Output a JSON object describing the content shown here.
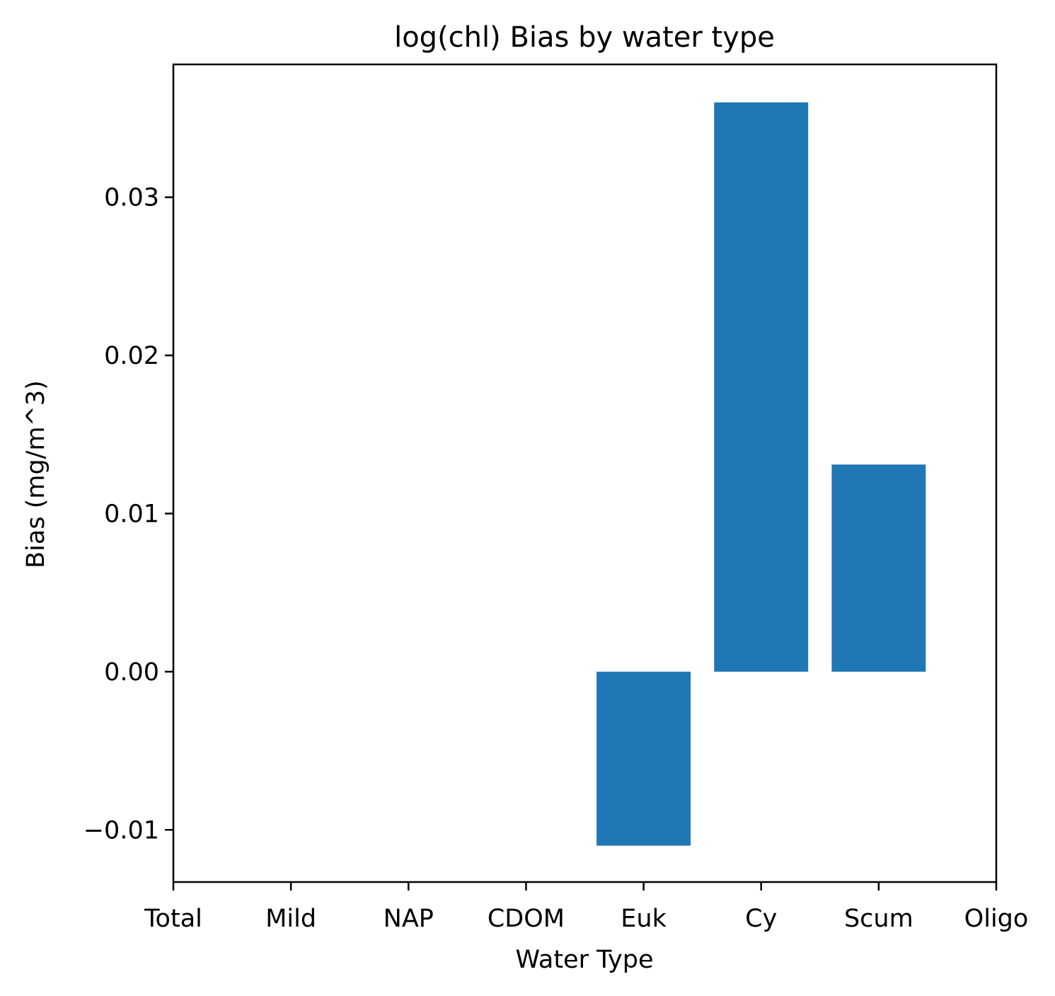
{
  "chart_data": {
    "type": "bar",
    "title": "log(chl) Bias by water type",
    "xlabel": "Water Type",
    "ylabel": "Bias (mg/m^3)",
    "categories": [
      "Total",
      "Mild",
      "NAP",
      "CDOM",
      "Euk",
      "Cy",
      "Scum",
      "Oligo"
    ],
    "values": [
      null,
      null,
      null,
      null,
      -0.011,
      0.036,
      0.0131,
      null
    ],
    "ylim": [
      -0.0133,
      0.0384
    ],
    "yticks": [
      -0.01,
      0.0,
      0.01,
      0.02,
      0.03
    ],
    "ytick_labels": [
      "−0.01",
      "0.00",
      "0.01",
      "0.02",
      "0.03"
    ],
    "xlim": [
      0,
      7
    ],
    "bar_width": 0.8,
    "bar_color": "#1f77b4",
    "grid": false,
    "legend": "none"
  }
}
